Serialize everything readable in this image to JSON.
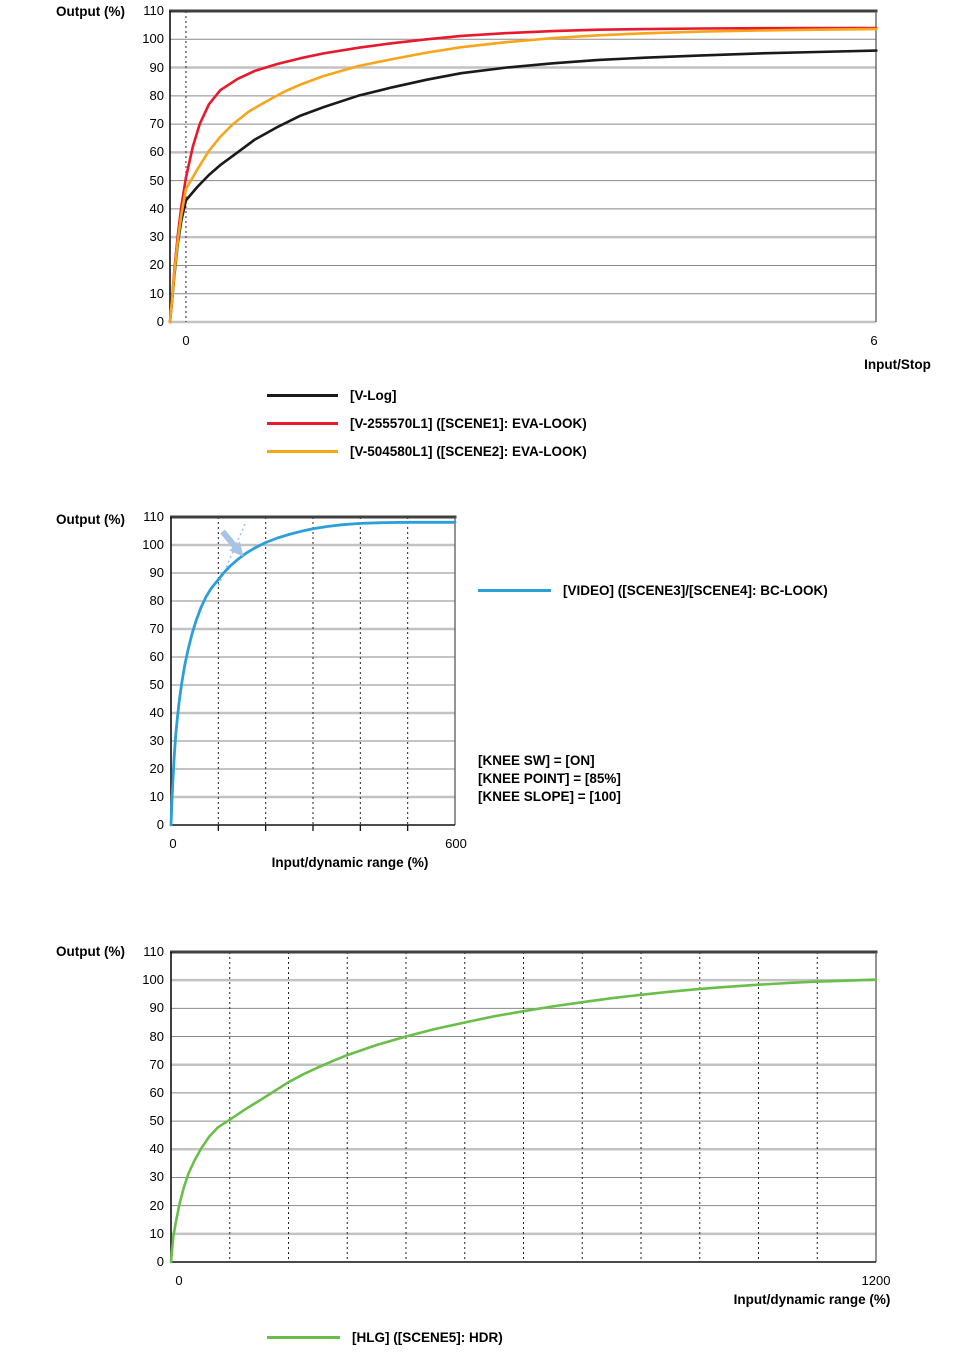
{
  "colors": {
    "axis": "#111111",
    "border_top": "#3f3f3f",
    "border_right": "#5a5a5a",
    "grid_major": "#c2c2c2",
    "grid_minor": "#8a8a8a",
    "dashed_line": "#222222",
    "vlog_black": "#1a1a1a",
    "eva_red": "#e8192c",
    "eva_orange": "#f8a51b",
    "video_blue": "#2b9fd9",
    "hlg_green": "#6abe4a",
    "annotation_blue": "#a9c3e4",
    "text": "#000000"
  },
  "chart_data": [
    {
      "id": "vlog-eva-look-chart",
      "type": "line",
      "y_axis_label": "Output (%)",
      "x_axis_label": "Input/Stop",
      "ylim": [
        0,
        110
      ],
      "xlim": [
        -0.139,
        6.017
      ],
      "y_ticks": [
        0,
        10,
        20,
        30,
        40,
        50,
        60,
        70,
        80,
        90,
        100,
        110
      ],
      "x_ticks": [
        {
          "label": "0",
          "value": 0
        },
        {
          "label": "6",
          "value": 6
        }
      ],
      "grid_major_values": [
        0,
        30,
        60,
        90
      ],
      "dashed_x_values": [
        0
      ],
      "x_axis_tick_values": [],
      "bottom_axis": "grid",
      "grid": true,
      "legend_position": "below",
      "series": [
        {
          "name": "[V-Log]",
          "slug": "v-log",
          "color": "vlog_black",
          "width": 2.6,
          "points": [
            [
              -0.139,
              0
            ],
            [
              -0.12,
              8
            ],
            [
              -0.1,
              17
            ],
            [
              -0.07,
              28
            ],
            [
              -0.04,
              36
            ],
            [
              0,
              43
            ],
            [
              0.1,
              47.8
            ],
            [
              0.2,
              52
            ],
            [
              0.3,
              55.5
            ],
            [
              0.45,
              60
            ],
            [
              0.6,
              64.5
            ],
            [
              0.8,
              69
            ],
            [
              1,
              73
            ],
            [
              1.2,
              76
            ],
            [
              1.5,
              80
            ],
            [
              1.8,
              83
            ],
            [
              2.1,
              85.7
            ],
            [
              2.4,
              88
            ],
            [
              2.8,
              90
            ],
            [
              3.2,
              91.5
            ],
            [
              3.6,
              92.7
            ],
            [
              4,
              93.5
            ],
            [
              4.5,
              94.3
            ],
            [
              5,
              95
            ],
            [
              5.5,
              95.5
            ],
            [
              6.02,
              96
            ]
          ]
        },
        {
          "name": "[V-255570L1] ([SCENE1]: EVA-LOOK)",
          "slug": "v-255570l1",
          "color": "eva_red",
          "width": 2.6,
          "points": [
            [
              -0.139,
              0
            ],
            [
              -0.12,
              9
            ],
            [
              -0.1,
              19
            ],
            [
              -0.07,
              31
            ],
            [
              -0.04,
              41
            ],
            [
              0,
              51
            ],
            [
              0.06,
              62
            ],
            [
              0.12,
              70
            ],
            [
              0.2,
              77
            ],
            [
              0.3,
              82
            ],
            [
              0.45,
              86
            ],
            [
              0.6,
              88.8
            ],
            [
              0.8,
              91.3
            ],
            [
              1,
              93.3
            ],
            [
              1.2,
              95
            ],
            [
              1.5,
              97
            ],
            [
              1.8,
              98.6
            ],
            [
              2.1,
              100
            ],
            [
              2.4,
              101.2
            ],
            [
              2.8,
              102.2
            ],
            [
              3.2,
              102.9
            ],
            [
              3.6,
              103.4
            ],
            [
              4,
              103.6
            ],
            [
              4.5,
              103.8
            ],
            [
              5,
              103.9
            ],
            [
              5.5,
              104
            ],
            [
              6.02,
              104
            ]
          ]
        },
        {
          "name": "[V-504580L1] ([SCENE2]: EVA-LOOK)",
          "slug": "v-504580l1",
          "color": "eva_orange",
          "width": 2.6,
          "points": [
            [
              -0.139,
              0
            ],
            [
              -0.12,
              8.5
            ],
            [
              -0.1,
              18
            ],
            [
              -0.07,
              29
            ],
            [
              -0.04,
              38
            ],
            [
              0,
              47
            ],
            [
              0.1,
              54
            ],
            [
              0.2,
              60.5
            ],
            [
              0.3,
              65.5
            ],
            [
              0.41,
              70
            ],
            [
              0.55,
              74.5
            ],
            [
              0.7,
              78
            ],
            [
              0.85,
              81.3
            ],
            [
              1,
              84
            ],
            [
              1.2,
              87
            ],
            [
              1.5,
              90.5
            ],
            [
              1.8,
              93
            ],
            [
              2.1,
              95.3
            ],
            [
              2.4,
              97.2
            ],
            [
              2.8,
              99
            ],
            [
              3.2,
              100.4
            ],
            [
              3.6,
              101.4
            ],
            [
              4,
              102.1
            ],
            [
              4.5,
              102.7
            ],
            [
              5,
              103.1
            ],
            [
              5.5,
              103.4
            ],
            [
              6.02,
              103.6
            ]
          ]
        }
      ],
      "legend": [
        {
          "label": "[V-Log]",
          "color": "vlog_black"
        },
        {
          "label": "[V-255570L1] ([SCENE1]: EVA-LOOK)",
          "color": "eva_red"
        },
        {
          "label": "[V-504580L1] ([SCENE2]: EVA-LOOK)",
          "color": "eva_orange"
        }
      ]
    },
    {
      "id": "video-bc-look-chart",
      "type": "line",
      "y_axis_label": "Output (%)",
      "x_axis_label": "Input/dynamic range (%)",
      "ylim": [
        0,
        110
      ],
      "xlim": [
        0,
        600
      ],
      "y_ticks": [
        0,
        10,
        20,
        30,
        40,
        50,
        60,
        70,
        80,
        90,
        100,
        110
      ],
      "x_ticks": [
        {
          "label": "0",
          "value": 0
        },
        {
          "label": "600",
          "value": 600
        }
      ],
      "grid_major_values": [
        10,
        40,
        70,
        100
      ],
      "dashed_x_values": [
        100,
        200,
        300,
        400,
        500
      ],
      "x_axis_tick_values": [
        100,
        200,
        300,
        400,
        500
      ],
      "bottom_axis": "axis",
      "grid": true,
      "legend_position": "right",
      "series": [
        {
          "name": "[VIDEO] ([SCENE3]/[SCENE4]: BC-LOOK)",
          "slug": "video",
          "color": "video_blue",
          "width": 2.8,
          "points": [
            [
              0,
              0
            ],
            [
              2,
              8
            ],
            [
              4,
              16
            ],
            [
              7,
              25
            ],
            [
              10,
              32
            ],
            [
              14,
              39
            ],
            [
              18,
              45
            ],
            [
              23,
              51
            ],
            [
              29,
              57
            ],
            [
              36,
              62.5
            ],
            [
              44,
              68
            ],
            [
              53,
              73
            ],
            [
              63,
              77.5
            ],
            [
              74,
              81.5
            ],
            [
              85,
              84.5
            ],
            [
              97,
              87
            ],
            [
              110,
              89.8
            ],
            [
              125,
              92.5
            ],
            [
              140,
              94.7
            ],
            [
              160,
              97.2
            ],
            [
              180,
              99.2
            ],
            [
              200,
              100.9
            ],
            [
              225,
              102.5
            ],
            [
              250,
              103.8
            ],
            [
              275,
              104.9
            ],
            [
              300,
              105.8
            ],
            [
              330,
              106.6
            ],
            [
              360,
              107.2
            ],
            [
              400,
              107.7
            ],
            [
              450,
              108
            ],
            [
              500,
              108.1
            ],
            [
              550,
              108.1
            ],
            [
              600,
              108.1
            ]
          ]
        }
      ],
      "legend": [
        {
          "label": "[VIDEO] ([SCENE3]/[SCENE4]: BC-LOOK)",
          "color": "video_blue"
        }
      ],
      "annotations": {
        "settings": [
          "[KNEE SW] = [ON]",
          "[KNEE POINT] = [85%]",
          "[KNEE SLOPE] = [100]"
        ],
        "tangent": [
          [
            100,
            85.5
          ],
          [
            159,
            108.5
          ]
        ],
        "arrow": [
          [
            109,
            104.8
          ],
          [
            140,
            98.5
          ]
        ]
      }
    },
    {
      "id": "hlg-hdr-chart",
      "type": "line",
      "y_axis_label": "Output (%)",
      "x_axis_label": "Input/dynamic range (%)",
      "ylim": [
        0,
        110
      ],
      "xlim": [
        0,
        1200
      ],
      "y_ticks": [
        0,
        10,
        20,
        30,
        40,
        50,
        60,
        70,
        80,
        90,
        100,
        110
      ],
      "x_ticks": [
        {
          "label": "0",
          "value": 0
        },
        {
          "label": "1200",
          "value": 1200
        }
      ],
      "grid_major_values": [
        10,
        40,
        70,
        100
      ],
      "dashed_x_values": [
        100,
        200,
        300,
        400,
        500,
        600,
        700,
        800,
        900,
        1000,
        1100
      ],
      "x_axis_tick_values": [],
      "bottom_axis": "axis",
      "grid": true,
      "legend_position": "below",
      "series": [
        {
          "name": "[HLG] ([SCENE5]: HDR)",
          "slug": "hlg",
          "color": "hlg_green",
          "width": 2.6,
          "points": [
            [
              0,
              0
            ],
            [
              4,
              9
            ],
            [
              9,
              15
            ],
            [
              15,
              21
            ],
            [
              22,
              26.5
            ],
            [
              30,
              31.5
            ],
            [
              40,
              36
            ],
            [
              52,
              40.5
            ],
            [
              65,
              44.5
            ],
            [
              80,
              47.8
            ],
            [
              100,
              50.5
            ],
            [
              125,
              54
            ],
            [
              150,
              57.2
            ],
            [
              175,
              60.5
            ],
            [
              200,
              63.8
            ],
            [
              225,
              66.6
            ],
            [
              250,
              69
            ],
            [
              275,
              71.3
            ],
            [
              300,
              73.4
            ],
            [
              350,
              77
            ],
            [
              400,
              80
            ],
            [
              450,
              82.7
            ],
            [
              500,
              85
            ],
            [
              550,
              87.2
            ],
            [
              600,
              89
            ],
            [
              650,
              90.7
            ],
            [
              700,
              92.2
            ],
            [
              750,
              93.6
            ],
            [
              800,
              94.8
            ],
            [
              850,
              95.9
            ],
            [
              900,
              96.9
            ],
            [
              950,
              97.7
            ],
            [
              1000,
              98.4
            ],
            [
              1050,
              99
            ],
            [
              1100,
              99.5
            ],
            [
              1150,
              99.8
            ],
            [
              1200,
              100.2
            ]
          ]
        }
      ],
      "legend": [
        {
          "label": "[HLG] ([SCENE5]: HDR)",
          "color": "hlg_green"
        }
      ]
    }
  ]
}
